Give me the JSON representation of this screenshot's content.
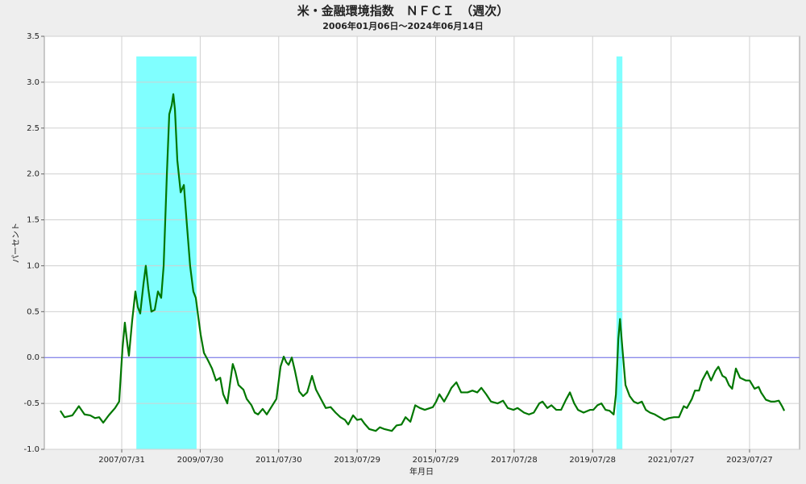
{
  "chart_data": {
    "type": "line",
    "title": "米・金融環境指数　ＮＦＣＩ　（週次）",
    "subtitle": "2006年01月06日～2024年06月14日",
    "x_label": "年月日",
    "y_label": "パーセント",
    "color": "#007700",
    "grid": true,
    "reference_line": {
      "value": 0,
      "color": "#6f6fee"
    },
    "shade_color": "#80ffff",
    "shaded_periods": [
      {
        "start": "2007/12/14",
        "end": "2009/06/26"
      },
      {
        "start": "2020/03/06",
        "end": "2020/04/30"
      }
    ],
    "xlim": [
      "2005/08/10",
      "2024/11/03"
    ],
    "xticks": [
      "2007/07/31",
      "2009/07/30",
      "2011/07/30",
      "2013/07/29",
      "2015/07/29",
      "2017/07/28",
      "2019/07/28",
      "2021/07/27",
      "2023/07/27"
    ],
    "ylim": [
      -1,
      3.5
    ],
    "yticks": [
      {
        "value": -1,
        "label": "-1.0"
      },
      -0.5,
      {
        "value": 0,
        "label": "0.0"
      },
      0.5,
      {
        "value": 1,
        "label": "1.0"
      },
      1.5,
      {
        "value": 2,
        "label": "2.0"
      },
      2.5,
      {
        "value": 3,
        "label": "3.0"
      },
      3.5
    ],
    "x": [
      "2006/01/06",
      "2006/02/14",
      "2006/04/28",
      "2006/06/27",
      "2006/08/19",
      "2006/10/11",
      "2006/11/25",
      "2007/01/02",
      "2007/02/09",
      "2007/04/01",
      "2007/05/30",
      "2007/07/07",
      "2007/08/07",
      "2007/08/29",
      "2007/09/21",
      "2007/10/06",
      "2007/11/05",
      "2007/12/05",
      "2007/12/27",
      "2008/01/19",
      "2008/02/18",
      "2008/03/11",
      "2008/04/03",
      "2008/05/02",
      "2008/06/02",
      "2008/07/02",
      "2008/08/01",
      "2008/08/24",
      "2008/09/23",
      "2008/10/15",
      "2008/11/07",
      "2008/11/22",
      "2008/12/07",
      "2008/12/29",
      "2009/01/29",
      "2009/02/28",
      "2009/03/28",
      "2009/04/27",
      "2009/05/27",
      "2009/06/19",
      "2009/07/11",
      "2009/08/03",
      "2009/09/03",
      "2009/10/10",
      "2009/11/17",
      "2009/12/24",
      "2010/02/01",
      "2010/03/01",
      "2010/04/08",
      "2010/05/07",
      "2010/05/29",
      "2010/06/21",
      "2010/07/21",
      "2010/09/05",
      "2010/10/05",
      "2010/11/19",
      "2010/12/19",
      "2011/01/19",
      "2011/03/03",
      "2011/04/10",
      "2011/05/17",
      "2011/07/09",
      "2011/08/16",
      "2011/09/15",
      "2011/10/08",
      "2011/10/30",
      "2011/11/29",
      "2011/12/29",
      "2012/02/06",
      "2012/03/13",
      "2012/04/20",
      "2012/06/04",
      "2012/07/11",
      "2012/08/25",
      "2012/10/10",
      "2012/11/24",
      "2013/01/09",
      "2013/02/23",
      "2013/04/07",
      "2013/05/07",
      "2013/06/21",
      "2013/07/28",
      "2013/09/05",
      "2013/10/05",
      "2013/11/19",
      "2014/01/18",
      "2014/02/25",
      "2014/04/09",
      "2014/06/16",
      "2014/07/30",
      "2014/09/14",
      "2014/10/22",
      "2014/12/06",
      "2015/01/20",
      "2015/03/05",
      "2015/04/19",
      "2015/07/03",
      "2015/08/03",
      "2015/09/02",
      "2015/10/16",
      "2015/11/23",
      "2015/12/23",
      "2016/02/07",
      "2016/03/22",
      "2016/05/21",
      "2016/07/05",
      "2016/08/19",
      "2016/09/26",
      "2016/11/10",
      "2016/12/25",
      "2017/02/24",
      "2017/04/16",
      "2017/05/30",
      "2017/07/22",
      "2017/08/29",
      "2017/10/28",
      "2017/12/13",
      "2018/01/27",
      "2018/03/19",
      "2018/04/18",
      "2018/06/02",
      "2018/07/10",
      "2018/08/24",
      "2018/10/08",
      "2018/11/22",
      "2018/12/29",
      "2019/02/07",
      "2019/03/14",
      "2019/05/05",
      "2019/07/04",
      "2019/08/04",
      "2019/09/11",
      "2019/10/18",
      "2019/11/25",
      "2020/01/02",
      "2020/02/09",
      "2020/03/01",
      "2020/03/23",
      "2020/04/08",
      "2020/04/30",
      "2020/05/29",
      "2020/07/07",
      "2020/08/14",
      "2020/09/20",
      "2020/10/28",
      "2020/12/04",
      "2021/01/12",
      "2021/02/26",
      "2021/04/10",
      "2021/05/24",
      "2021/07/09",
      "2021/08/23",
      "2021/10/08",
      "2021/11/22",
      "2021/12/21",
      "2022/02/06",
      "2022/03/06",
      "2022/04/13",
      "2022/05/12",
      "2022/06/27",
      "2022/08/03",
      "2022/09/10",
      "2022/10/10",
      "2022/11/17",
      "2022/12/17",
      "2023/01/16",
      "2023/02/15",
      "2023/03/22",
      "2023/04/29",
      "2023/06/21",
      "2023/07/28",
      "2023/09/12",
      "2023/10/19",
      "2023/11/11",
      "2023/12/26",
      "2024/02/10",
      "2024/03/17",
      "2024/04/24",
      "2024/05/24",
      "2024/06/14"
    ],
    "values": [
      -0.58,
      -0.65,
      -0.63,
      -0.53,
      -0.62,
      -0.63,
      -0.66,
      -0.65,
      -0.71,
      -0.63,
      -0.55,
      -0.48,
      0.1,
      0.38,
      0.15,
      0.02,
      0.4,
      0.72,
      0.55,
      0.48,
      0.8,
      1.0,
      0.75,
      0.5,
      0.52,
      0.72,
      0.65,
      1.0,
      2.0,
      2.65,
      2.75,
      2.87,
      2.7,
      2.15,
      1.8,
      1.88,
      1.45,
      1.0,
      0.72,
      0.65,
      0.45,
      0.25,
      0.05,
      -0.03,
      -0.12,
      -0.25,
      -0.22,
      -0.4,
      -0.5,
      -0.25,
      -0.07,
      -0.15,
      -0.3,
      -0.35,
      -0.45,
      -0.52,
      -0.6,
      -0.62,
      -0.56,
      -0.62,
      -0.55,
      -0.45,
      -0.1,
      0.01,
      -0.05,
      -0.08,
      0.0,
      -0.15,
      -0.37,
      -0.42,
      -0.38,
      -0.2,
      -0.35,
      -0.45,
      -0.55,
      -0.54,
      -0.6,
      -0.65,
      -0.68,
      -0.73,
      -0.63,
      -0.68,
      -0.67,
      -0.72,
      -0.78,
      -0.8,
      -0.76,
      -0.78,
      -0.8,
      -0.74,
      -0.73,
      -0.65,
      -0.7,
      -0.52,
      -0.55,
      -0.57,
      -0.54,
      -0.48,
      -0.4,
      -0.48,
      -0.4,
      -0.33,
      -0.27,
      -0.38,
      -0.38,
      -0.36,
      -0.38,
      -0.33,
      -0.4,
      -0.48,
      -0.5,
      -0.47,
      -0.55,
      -0.57,
      -0.55,
      -0.6,
      -0.62,
      -0.6,
      -0.5,
      -0.48,
      -0.55,
      -0.52,
      -0.57,
      -0.57,
      -0.46,
      -0.38,
      -0.5,
      -0.57,
      -0.6,
      -0.57,
      -0.57,
      -0.52,
      -0.5,
      -0.57,
      -0.58,
      -0.62,
      -0.4,
      0.2,
      0.42,
      0.1,
      -0.3,
      -0.42,
      -0.48,
      -0.5,
      -0.48,
      -0.57,
      -0.6,
      -0.62,
      -0.65,
      -0.68,
      -0.66,
      -0.65,
      -0.65,
      -0.53,
      -0.55,
      -0.45,
      -0.36,
      -0.36,
      -0.25,
      -0.15,
      -0.25,
      -0.15,
      -0.1,
      -0.2,
      -0.22,
      -0.3,
      -0.34,
      -0.12,
      -0.22,
      -0.25,
      -0.25,
      -0.34,
      -0.32,
      -0.38,
      -0.46,
      -0.48,
      -0.48,
      -0.47,
      -0.53,
      -0.58
    ]
  }
}
